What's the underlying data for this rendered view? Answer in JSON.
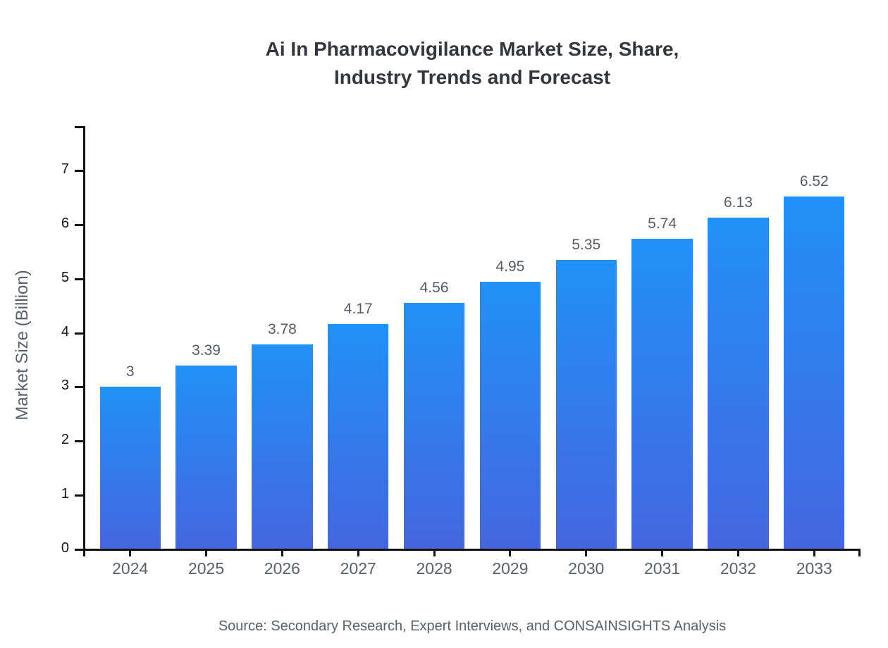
{
  "title": {
    "line1": "Ai In Pharmacovigilance Market Size, Share,",
    "line2": "Industry Trends and Forecast"
  },
  "source": "Source: Secondary Research, Expert Interviews, and CONSAINSIGHTS Analysis",
  "chart_data": {
    "type": "bar",
    "title": "Ai In Pharmacovigilance Market Size, Share, Industry Trends and Forecast",
    "categories": [
      "2024",
      "2025",
      "2026",
      "2027",
      "2028",
      "2029",
      "2030",
      "2031",
      "2032",
      "2033"
    ],
    "values": [
      3,
      3.39,
      3.78,
      4.17,
      4.56,
      4.95,
      5.35,
      5.74,
      6.13,
      6.52
    ],
    "value_labels": [
      "3",
      "3.39",
      "3.78",
      "4.17",
      "4.56",
      "4.95",
      "5.35",
      "5.74",
      "6.13",
      "6.52"
    ],
    "xlabel": "",
    "ylabel": "Market Size (Billion)",
    "ylim": [
      0,
      7.8
    ],
    "yticks": [
      0,
      1,
      2,
      3,
      4,
      5,
      6,
      7
    ],
    "grid": false,
    "legend": false
  },
  "colors": {
    "background": "#ffffff",
    "title": "#33373d",
    "axis": "#111111",
    "y_tick_label": "#15181c",
    "gray_label": "#586069",
    "value_label": "#565c66",
    "bar_gradient_top": "#2191f8",
    "bar_gradient_bottom": "#4566df"
  }
}
